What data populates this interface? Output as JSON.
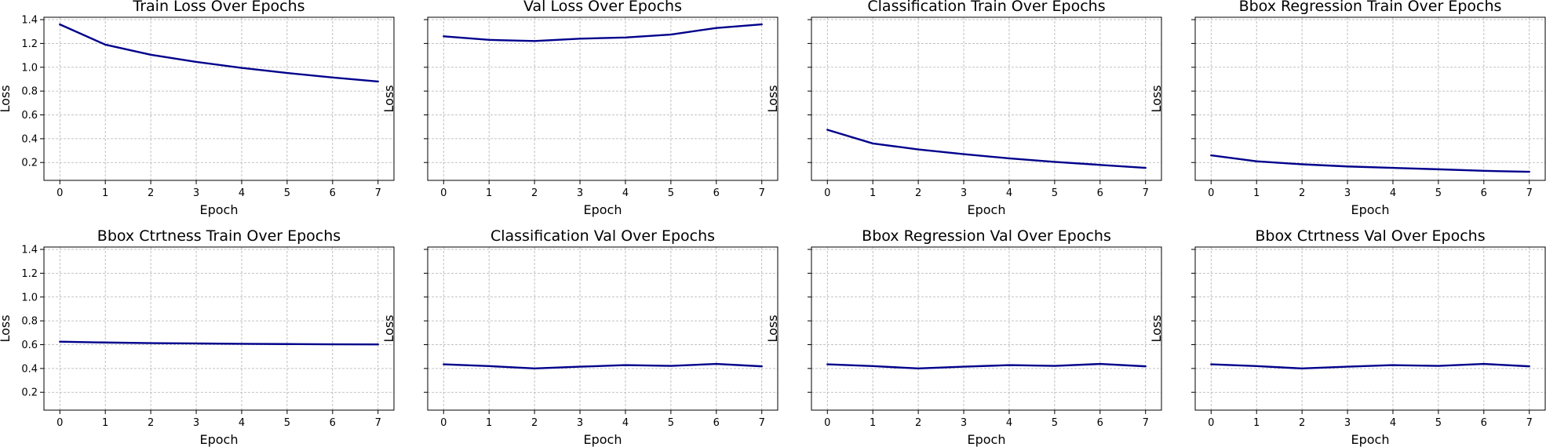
{
  "colors": {
    "line": "#00008b",
    "grid": "#b0b0b0",
    "background": "#ffffff"
  },
  "chart_data": [
    {
      "type": "line",
      "title": "Train Loss Over Epochs",
      "xlabel": "Epoch",
      "ylabel": "Loss",
      "x": [
        0,
        1,
        2,
        3,
        4,
        5,
        6,
        7
      ],
      "values": [
        1.36,
        1.19,
        1.105,
        1.045,
        0.995,
        0.952,
        0.914,
        0.88
      ],
      "xlim": [
        -0.35,
        7.35
      ],
      "ylim": [
        0.05,
        1.42
      ],
      "yticks": [
        0.2,
        0.4,
        0.6,
        0.8,
        1.0,
        1.2,
        1.4
      ],
      "ytick_labels_shown": true,
      "grid": true
    },
    {
      "type": "line",
      "title": "Val Loss Over Epochs",
      "xlabel": "Epoch",
      "ylabel": "Loss",
      "x": [
        0,
        1,
        2,
        3,
        4,
        5,
        6,
        7
      ],
      "values": [
        1.26,
        1.23,
        1.22,
        1.24,
        1.25,
        1.275,
        1.33,
        1.36
      ],
      "xlim": [
        -0.35,
        7.35
      ],
      "ylim": [
        0.05,
        1.42
      ],
      "yticks": [
        0.2,
        0.4,
        0.6,
        0.8,
        1.0,
        1.2,
        1.4
      ],
      "ytick_labels_shown": false,
      "grid": true
    },
    {
      "type": "line",
      "title": "Classification Train Over Epochs",
      "xlabel": "Epoch",
      "ylabel": "Loss",
      "x": [
        0,
        1,
        2,
        3,
        4,
        5,
        6,
        7
      ],
      "values": [
        0.475,
        0.36,
        0.31,
        0.27,
        0.235,
        0.205,
        0.18,
        0.155
      ],
      "xlim": [
        -0.35,
        7.35
      ],
      "ylim": [
        0.05,
        1.42
      ],
      "yticks": [
        0.2,
        0.4,
        0.6,
        0.8,
        1.0,
        1.2,
        1.4
      ],
      "ytick_labels_shown": false,
      "grid": true
    },
    {
      "type": "line",
      "title": "Bbox Regression Train Over Epochs",
      "xlabel": "Epoch",
      "ylabel": "Loss",
      "x": [
        0,
        1,
        2,
        3,
        4,
        5,
        6,
        7
      ],
      "values": [
        0.26,
        0.21,
        0.185,
        0.167,
        0.155,
        0.143,
        0.13,
        0.122
      ],
      "xlim": [
        -0.35,
        7.35
      ],
      "ylim": [
        0.05,
        1.42
      ],
      "yticks": [
        0.2,
        0.4,
        0.6,
        0.8,
        1.0,
        1.2,
        1.4
      ],
      "ytick_labels_shown": false,
      "grid": true
    },
    {
      "type": "line",
      "title": "Bbox Ctrtness Train Over Epochs",
      "xlabel": "Epoch",
      "ylabel": "Loss",
      "x": [
        0,
        1,
        2,
        3,
        4,
        5,
        6,
        7
      ],
      "values": [
        0.625,
        0.618,
        0.613,
        0.61,
        0.607,
        0.605,
        0.603,
        0.602
      ],
      "xlim": [
        -0.35,
        7.35
      ],
      "ylim": [
        0.05,
        1.42
      ],
      "yticks": [
        0.2,
        0.4,
        0.6,
        0.8,
        1.0,
        1.2,
        1.4
      ],
      "ytick_labels_shown": true,
      "grid": true
    },
    {
      "type": "line",
      "title": "Classification Val Over Epochs",
      "xlabel": "Epoch",
      "ylabel": "Loss",
      "x": [
        0,
        1,
        2,
        3,
        4,
        5,
        6,
        7
      ],
      "values": [
        0.435,
        0.42,
        0.4,
        0.415,
        0.428,
        0.422,
        0.438,
        0.418
      ],
      "xlim": [
        -0.35,
        7.35
      ],
      "ylim": [
        0.05,
        1.42
      ],
      "yticks": [
        0.2,
        0.4,
        0.6,
        0.8,
        1.0,
        1.2,
        1.4
      ],
      "ytick_labels_shown": false,
      "grid": true
    },
    {
      "type": "line",
      "title": "Bbox Regression Val Over Epochs",
      "xlabel": "Epoch",
      "ylabel": "Loss",
      "x": [
        0,
        1,
        2,
        3,
        4,
        5,
        6,
        7
      ],
      "values": [
        0.435,
        0.42,
        0.4,
        0.415,
        0.428,
        0.422,
        0.438,
        0.418
      ],
      "xlim": [
        -0.35,
        7.35
      ],
      "ylim": [
        0.05,
        1.42
      ],
      "yticks": [
        0.2,
        0.4,
        0.6,
        0.8,
        1.0,
        1.2,
        1.4
      ],
      "ytick_labels_shown": false,
      "grid": true
    },
    {
      "type": "line",
      "title": "Bbox Ctrtness Val Over Epochs",
      "xlabel": "Epoch",
      "ylabel": "Loss",
      "x": [
        0,
        1,
        2,
        3,
        4,
        5,
        6,
        7
      ],
      "values": [
        0.435,
        0.42,
        0.4,
        0.415,
        0.428,
        0.422,
        0.438,
        0.418
      ],
      "xlim": [
        -0.35,
        7.35
      ],
      "ylim": [
        0.05,
        1.42
      ],
      "yticks": [
        0.2,
        0.4,
        0.6,
        0.8,
        1.0,
        1.2,
        1.4
      ],
      "ytick_labels_shown": false,
      "grid": true
    }
  ]
}
